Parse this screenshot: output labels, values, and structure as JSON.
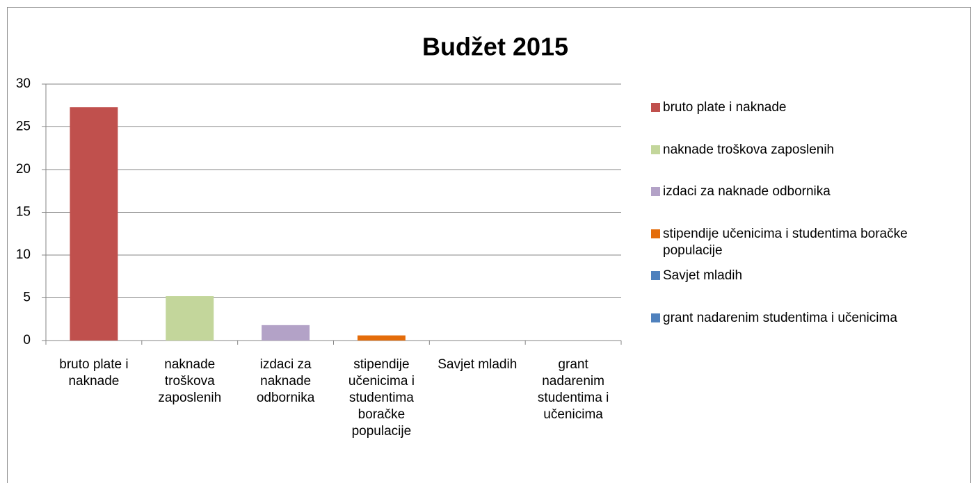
{
  "chart_data": {
    "type": "bar",
    "title": "Budžet 2015",
    "categories": [
      "bruto plate i naknade",
      "naknade troškova zaposlenih",
      "izdaci za naknade odbornika",
      "stipendije učenicima i studentima boračke populacije",
      "Savjet mladih",
      "grant nadarenim studentima i učenicima"
    ],
    "values": [
      27.3,
      5.2,
      1.8,
      0.6,
      0,
      0
    ],
    "colors": [
      "#c0504d",
      "#c3d69b",
      "#b3a2c7",
      "#e46c0a",
      "#4f81bd",
      "#4f81bd"
    ],
    "ylim": [
      0,
      30
    ],
    "yticks": [
      0,
      5,
      10,
      15,
      20,
      25,
      30
    ],
    "grid": true,
    "legend": "right"
  }
}
